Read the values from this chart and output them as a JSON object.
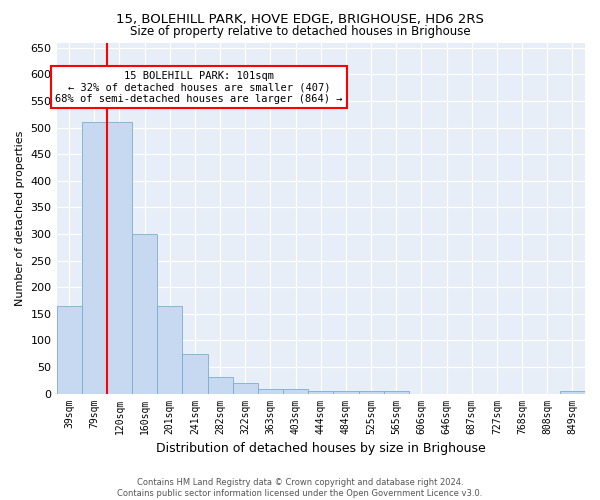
{
  "title": "15, BOLEHILL PARK, HOVE EDGE, BRIGHOUSE, HD6 2RS",
  "subtitle": "Size of property relative to detached houses in Brighouse",
  "xlabel": "Distribution of detached houses by size in Brighouse",
  "ylabel": "Number of detached properties",
  "categories": [
    "39sqm",
    "79sqm",
    "120sqm",
    "160sqm",
    "201sqm",
    "241sqm",
    "282sqm",
    "322sqm",
    "363sqm",
    "403sqm",
    "444sqm",
    "484sqm",
    "525sqm",
    "565sqm",
    "606sqm",
    "646sqm",
    "687sqm",
    "727sqm",
    "768sqm",
    "808sqm",
    "849sqm"
  ],
  "values": [
    165,
    510,
    510,
    300,
    165,
    75,
    32,
    20,
    8,
    8,
    5,
    5,
    5,
    5,
    0,
    0,
    0,
    0,
    0,
    0,
    5
  ],
  "bar_color": "#c6d9f0",
  "bar_edge_color": "#7aadd4",
  "vline_color": "red",
  "vline_x": 1.5,
  "annotation_text": "15 BOLEHILL PARK: 101sqm\n← 32% of detached houses are smaller (407)\n68% of semi-detached houses are larger (864) →",
  "annotation_box_color": "white",
  "annotation_box_edge": "red",
  "ylim": [
    0,
    660
  ],
  "yticks": [
    0,
    50,
    100,
    150,
    200,
    250,
    300,
    350,
    400,
    450,
    500,
    550,
    600,
    650
  ],
  "footer": "Contains HM Land Registry data © Crown copyright and database right 2024.\nContains public sector information licensed under the Open Government Licence v3.0.",
  "bg_color": "#ffffff",
  "plot_bg_color": "#e8eef7"
}
